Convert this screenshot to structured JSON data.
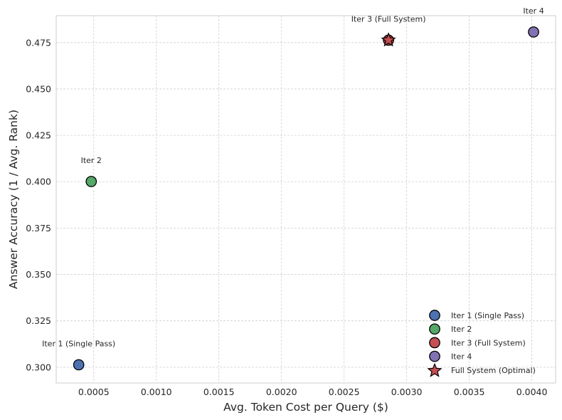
{
  "chart_data": {
    "type": "scatter",
    "title": "",
    "xlabel": "Avg. Token Cost per Query ($)",
    "ylabel": "Answer Accuracy (1 / Avg. Rank)",
    "xlim": [
      0.0002,
      0.00419
    ],
    "ylim": [
      0.2915,
      0.4895
    ],
    "xticks": [
      "0.0005",
      "0.0010",
      "0.0015",
      "0.0020",
      "0.0025",
      "0.0030",
      "0.0035",
      "0.0040"
    ],
    "xtick_values": [
      0.0005,
      0.001,
      0.0015,
      0.002,
      0.0025,
      0.003,
      0.0035,
      0.004
    ],
    "yticks": [
      "0.300",
      "0.325",
      "0.350",
      "0.375",
      "0.400",
      "0.425",
      "0.450",
      "0.475"
    ],
    "ytick_values": [
      0.3,
      0.325,
      0.35,
      0.375,
      0.4,
      0.425,
      0.45,
      0.475
    ],
    "grid": true,
    "legend_position": "lower-right",
    "series": [
      {
        "name": "Iter 1 (Single Pass)",
        "x": 0.00038,
        "y": 0.3013,
        "color": "#4c72b0",
        "marker": "circle",
        "annotation": "Iter 1 (Single Pass)"
      },
      {
        "name": "Iter 2",
        "x": 0.00048,
        "y": 0.4001,
        "color": "#55a868",
        "marker": "circle",
        "annotation": "Iter 2"
      },
      {
        "name": "Iter 3 (Full System)",
        "x": 0.002855,
        "y": 0.4763,
        "color": "#c44e52",
        "marker": "circle",
        "annotation": "Iter 3 (Full System)"
      },
      {
        "name": "Iter 4",
        "x": 0.004014,
        "y": 0.4807,
        "color": "#8172b3",
        "marker": "circle",
        "annotation": "Iter 4"
      },
      {
        "name": "Full System (Optimal)",
        "x": 0.002855,
        "y": 0.4763,
        "color": "#c44e52",
        "marker": "star",
        "annotation": ""
      }
    ]
  }
}
